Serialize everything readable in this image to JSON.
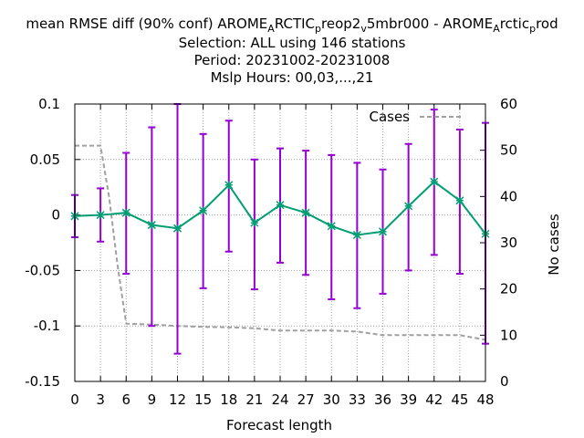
{
  "chart_data": {
    "type": "line",
    "title_lines": [
      "mean RMSE diff (90% conf) AROME_ARCTIC_preop2_v5mbr000 - AROME_Arctic_prod",
      "Selection: ALL using   146 stations",
      "Period: 20231002-20231008",
      "Mslp   Hours:  00,03,...,21"
    ],
    "xlabel": "Forecast length",
    "ylabel_right": "No cases",
    "x": [
      0,
      3,
      6,
      9,
      12,
      15,
      18,
      21,
      24,
      27,
      30,
      33,
      36,
      39,
      42,
      45,
      48
    ],
    "xlim": [
      0,
      48
    ],
    "ylim": [
      -0.15,
      0.1
    ],
    "y2lim": [
      0,
      60
    ],
    "yticks": [
      "0.1",
      "0.05",
      "0",
      "-0.05",
      "-0.1",
      "-0.15"
    ],
    "y2ticks": [
      "60",
      "50",
      "40",
      "30",
      "20",
      "10",
      "0"
    ],
    "xticks": [
      "0",
      "3",
      "6",
      "9",
      "12",
      "15",
      "18",
      "21",
      "24",
      "27",
      "30",
      "33",
      "36",
      "39",
      "42",
      "45",
      "48"
    ],
    "grid": true,
    "series": [
      {
        "role": "mean",
        "color": "#009e73",
        "values": [
          -0.001,
          0.0,
          0.002,
          -0.009,
          -0.012,
          0.004,
          0.027,
          -0.007,
          0.009,
          0.002,
          -0.01,
          -0.018,
          -0.015,
          0.008,
          0.03,
          0.013,
          -0.017
        ],
        "err_low": [
          -0.02,
          -0.024,
          -0.053,
          -0.1,
          -0.125,
          -0.066,
          -0.033,
          -0.067,
          -0.043,
          -0.054,
          -0.076,
          -0.084,
          -0.071,
          -0.05,
          -0.036,
          -0.053,
          -0.116
        ],
        "err_high": [
          0.018,
          0.024,
          0.056,
          0.079,
          0.1,
          0.073,
          0.085,
          0.05,
          0.06,
          0.058,
          0.054,
          0.047,
          0.041,
          0.064,
          0.095,
          0.077,
          0.083
        ],
        "err_color": "#9400d3"
      },
      {
        "name": "Cases",
        "role": "cases",
        "axis": "right",
        "color": "#a0a0a0",
        "dashed": true,
        "x": [
          0,
          3,
          4,
          5,
          6,
          9,
          12,
          15,
          18,
          21,
          24,
          27,
          30,
          33,
          36,
          39,
          42,
          45,
          48
        ],
        "values": [
          51,
          51,
          40,
          25,
          12.5,
          12.3,
          12,
          11.8,
          11.7,
          11.5,
          11,
          11,
          11,
          10.8,
          10,
          10,
          10,
          10,
          9
        ]
      }
    ],
    "legend": {
      "position": "top-right",
      "entries": [
        "Cases"
      ]
    }
  }
}
